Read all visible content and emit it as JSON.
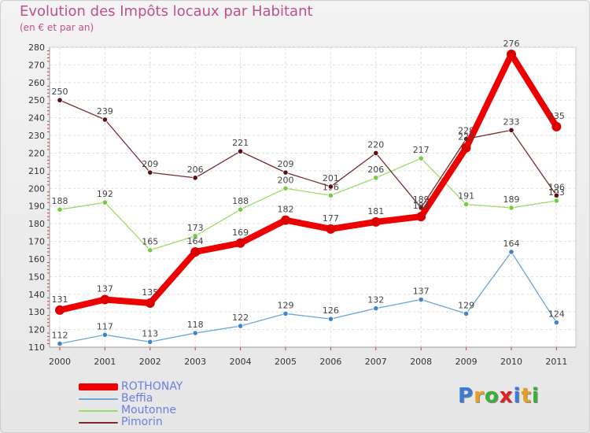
{
  "header": {
    "title": "Evolution des Impôts locaux par Habitant",
    "subtitle": "(en € et par an)"
  },
  "logo": {
    "letters": [
      "P",
      "r",
      "o",
      "x",
      "i",
      "t",
      "i"
    ],
    "colors": [
      "#3a7bd5",
      "#e8a020",
      "#3ab03a",
      "#e02020",
      "#3a7bd5",
      "#e8a020",
      "#3ab03a"
    ]
  },
  "chart_data": {
    "type": "line",
    "title": "Evolution des Impôts locaux par Habitant",
    "subtitle": "(en € et par an)",
    "categories": [
      "2000",
      "2001",
      "2002",
      "2003",
      "2004",
      "2005",
      "2006",
      "2007",
      "2008",
      "2009",
      "2010",
      "2011"
    ],
    "ylim": [
      110,
      280
    ],
    "yticks": [
      110,
      120,
      130,
      140,
      150,
      160,
      170,
      180,
      190,
      200,
      210,
      220,
      230,
      240,
      250,
      260,
      270,
      280
    ],
    "grid": true,
    "legend_position": "bottom-left",
    "series": [
      {
        "name": "ROTHONAY",
        "color": "#ee0000",
        "dot": "#dd0000",
        "weight": "heavy",
        "values": [
          131,
          137,
          135,
          164,
          169,
          182,
          177,
          181,
          184,
          223,
          276,
          235
        ],
        "labels": [
          "131",
          "137",
          "135",
          "164",
          "169",
          "182",
          "177",
          "181",
          "184",
          "223",
          "276",
          "235"
        ]
      },
      {
        "name": "Beffia",
        "color": "#6aa6d6",
        "dot": "#3f86c8",
        "weight": "thin",
        "values": [
          112,
          117,
          113,
          118,
          122,
          129,
          126,
          132,
          137,
          129,
          164,
          124
        ],
        "labels": [
          "112",
          "117",
          "113",
          "118",
          "122",
          "129",
          "126",
          "132",
          "137",
          "129",
          "164",
          "124"
        ]
      },
      {
        "name": "Moutonne",
        "color": "#99dd66",
        "dot": "#77cc44",
        "weight": "thin",
        "values": [
          188,
          192,
          165,
          173,
          188,
          200,
          196,
          206,
          217,
          191,
          189,
          193
        ],
        "labels": [
          "188",
          "192",
          "165",
          "173",
          "188",
          "200",
          "196",
          "206",
          "217",
          "191",
          "189",
          "193"
        ]
      },
      {
        "name": "Pimorin",
        "color": "#7a2a2a",
        "dot": "#5a1010",
        "weight": "thin",
        "values": [
          250,
          239,
          209,
          206,
          221,
          209,
          201,
          220,
          189,
          228,
          233,
          196
        ],
        "labels": [
          "250",
          "239",
          "209",
          "206",
          "221",
          "209",
          "201",
          "220",
          "189",
          "228",
          "233",
          "196"
        ]
      }
    ]
  }
}
